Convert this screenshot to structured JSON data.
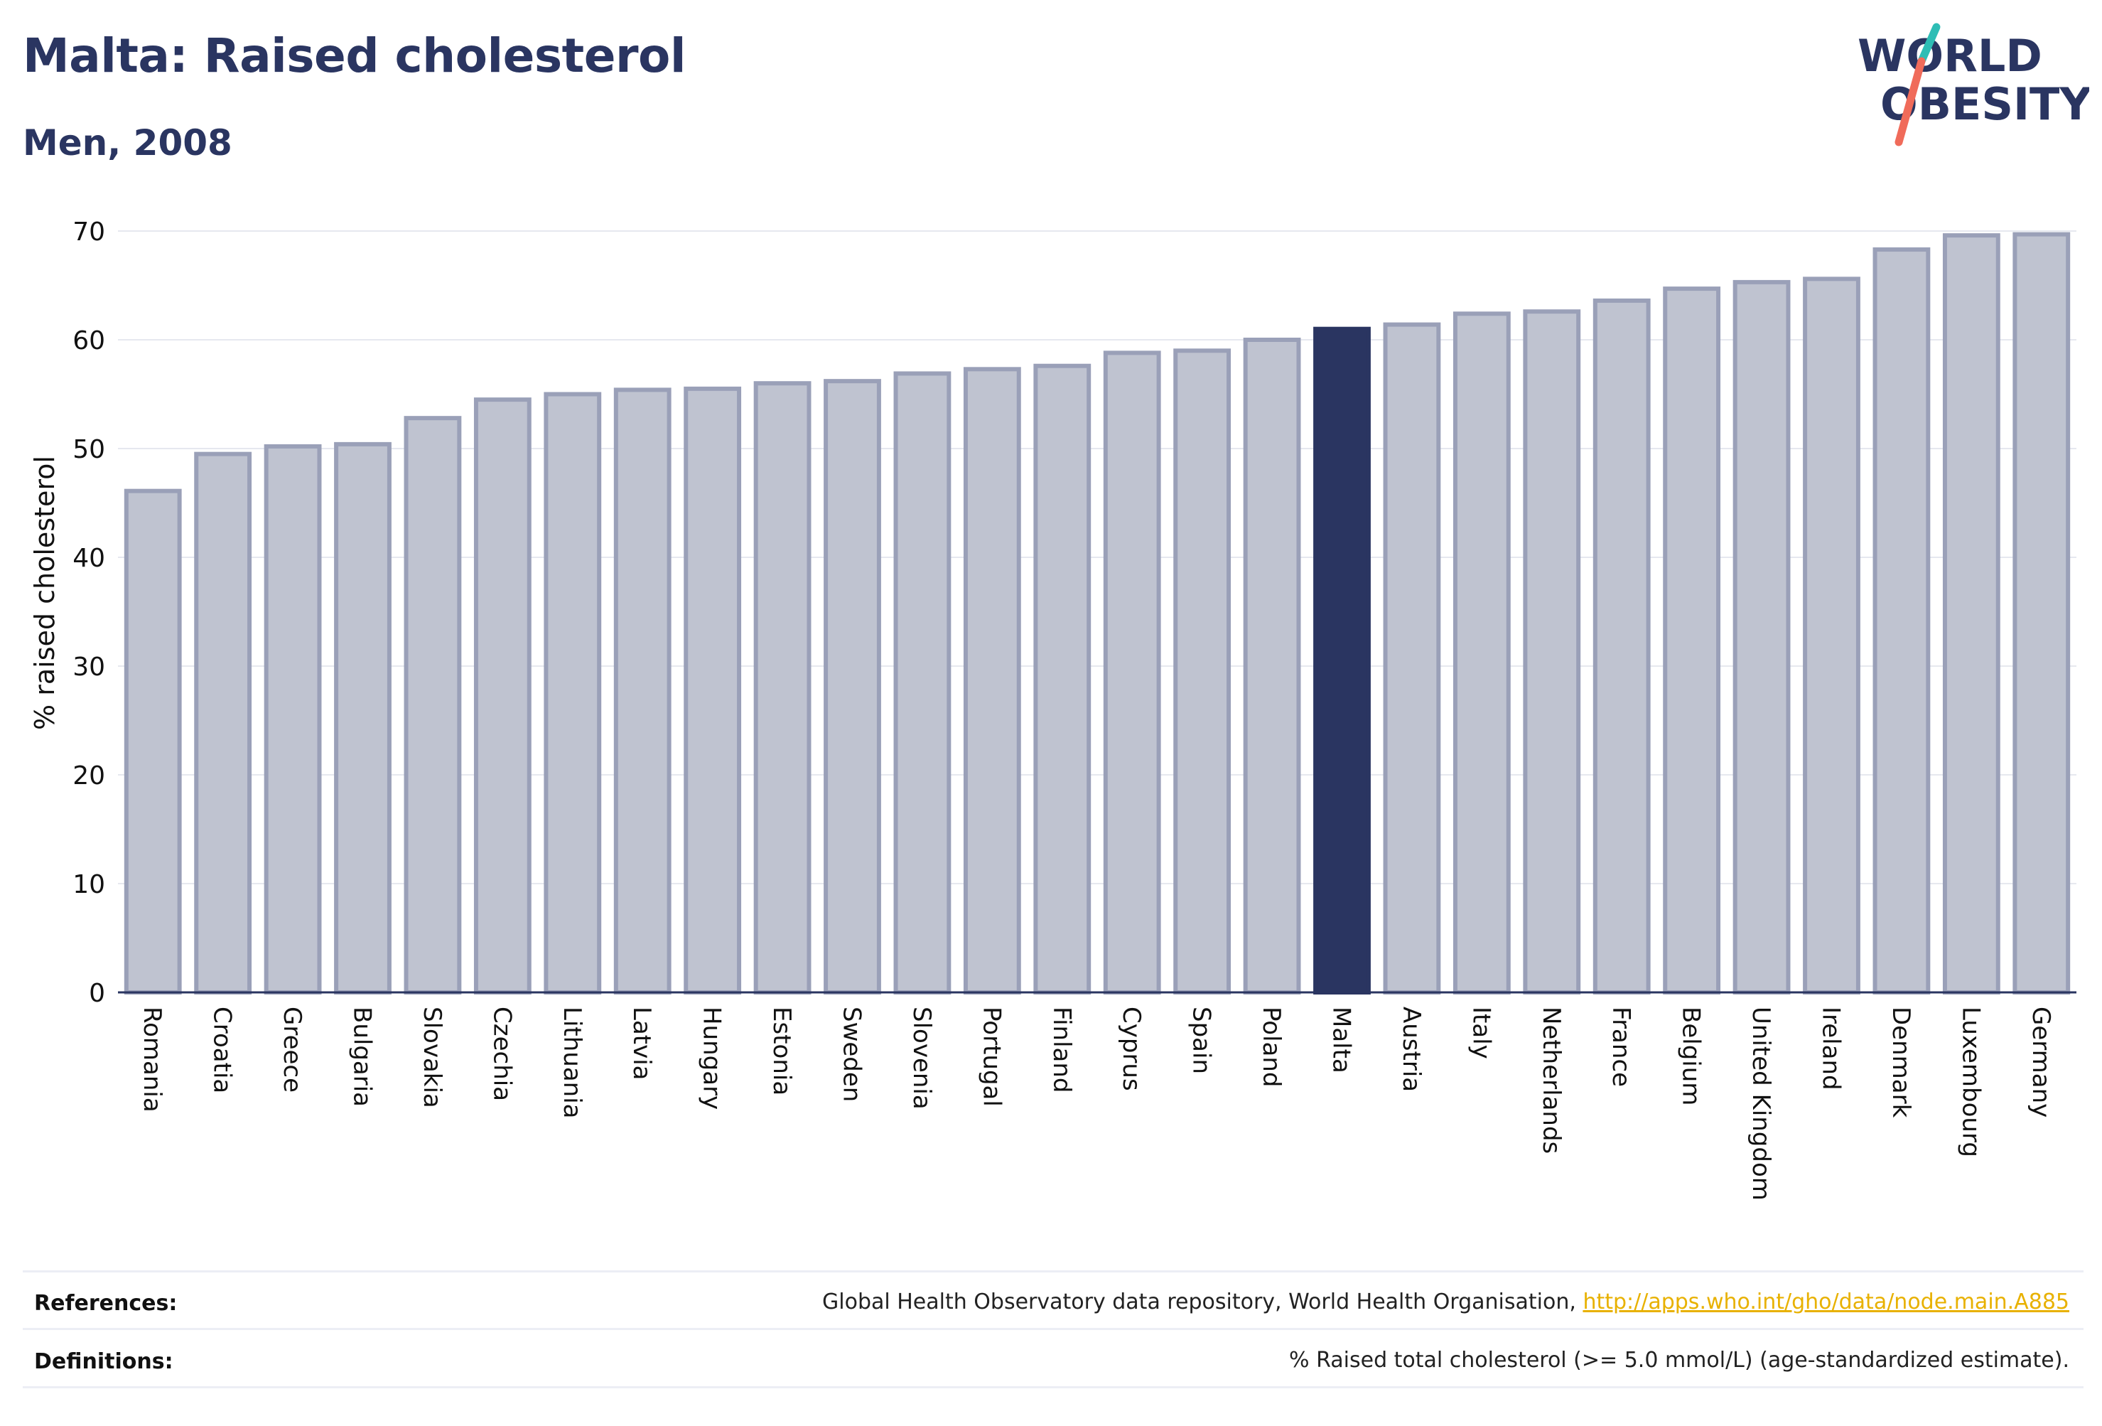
{
  "header": {
    "title": "Malta: Raised cholesterol",
    "subtitle": "Men, 2008"
  },
  "logo": {
    "line1": "WORLD",
    "line2": "OBESITY",
    "colors": {
      "text": "#2a3561",
      "slash_teal": "#2ebdb5",
      "slash_coral": "#f06b5a"
    }
  },
  "chart_data": {
    "type": "bar",
    "title": "",
    "xlabel": "",
    "ylabel": "% raised cholesterol",
    "ylim": [
      0,
      70
    ],
    "yticks": [
      0,
      10,
      20,
      30,
      40,
      50,
      60,
      70
    ],
    "grid": true,
    "highlight": "Malta",
    "colors": {
      "default_fill": "#bfc3d0",
      "default_stroke": "#9aa0b8",
      "highlight_fill": "#2a3561"
    },
    "categories": [
      "Romania",
      "Croatia",
      "Greece",
      "Bulgaria",
      "Slovakia",
      "Czechia",
      "Lithuania",
      "Latvia",
      "Hungary",
      "Estonia",
      "Sweden",
      "Slovenia",
      "Portugal",
      "Finland",
      "Cyprus",
      "Spain",
      "Poland",
      "Malta",
      "Austria",
      "Italy",
      "Netherlands",
      "France",
      "Belgium",
      "United Kingdom",
      "Ireland",
      "Denmark",
      "Luxembourg",
      "Germany"
    ],
    "values": [
      46.1,
      49.5,
      50.2,
      50.4,
      52.8,
      54.5,
      55.0,
      55.4,
      55.5,
      56.0,
      56.2,
      56.9,
      57.3,
      57.6,
      58.8,
      59.0,
      60.0,
      61.0,
      61.4,
      62.4,
      62.6,
      63.6,
      64.7,
      65.3,
      65.6,
      68.3,
      69.6,
      69.7
    ]
  },
  "footer": {
    "references_label": "References:",
    "references_text": "Global Health Observatory data repository, World Health Organisation, ",
    "references_link": "http://apps.who.int/gho/data/node.main.A885",
    "definitions_label": "Definitions:",
    "definitions_text": "% Raised total cholesterol (>= 5.0 mmol/L) (age-standardized estimate)."
  }
}
